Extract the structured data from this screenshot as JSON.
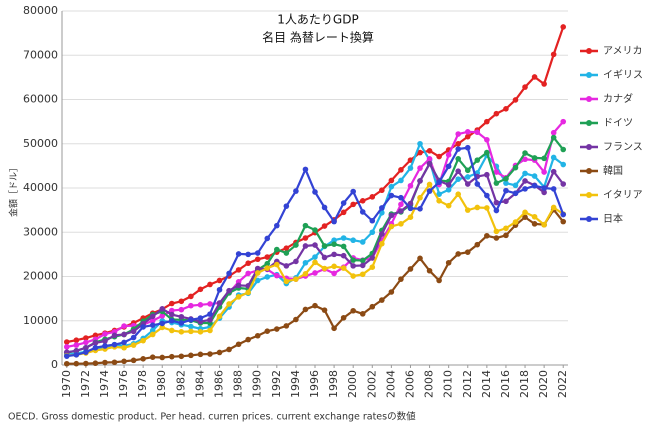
{
  "chart_data": {
    "type": "line",
    "title": "1人あたりGDP",
    "subtitle": "名目 為替レート換算",
    "y_label": "金額［ドル］",
    "source": "OECD. Gross domestic product. Per head. curren prices. current exchange ratesの数値",
    "x": [
      1970,
      1971,
      1972,
      1973,
      1974,
      1975,
      1976,
      1977,
      1978,
      1979,
      1980,
      1981,
      1982,
      1983,
      1984,
      1985,
      1986,
      1987,
      1988,
      1989,
      1990,
      1991,
      1992,
      1993,
      1994,
      1995,
      1996,
      1997,
      1998,
      1999,
      2000,
      2001,
      2002,
      2003,
      2004,
      2005,
      2006,
      2007,
      2008,
      2009,
      2010,
      2011,
      2012,
      2013,
      2014,
      2015,
      2016,
      2017,
      2018,
      2019,
      2020,
      2021,
      2022
    ],
    "xlim": [
      1969.5,
      2022.5
    ],
    "xticks": [
      1970,
      1972,
      1974,
      1976,
      1978,
      1980,
      1982,
      1984,
      1986,
      1988,
      1990,
      1992,
      1994,
      1996,
      1998,
      2000,
      2002,
      2004,
      2006,
      2008,
      2010,
      2012,
      2014,
      2016,
      2018,
      2020,
      2022
    ],
    "ylim": [
      0,
      80000
    ],
    "yticks": [
      0,
      10000,
      20000,
      30000,
      40000,
      50000,
      60000,
      70000,
      80000
    ],
    "grid": true,
    "legend": "right",
    "series": [
      {
        "name": "アメリカ",
        "color": "#e32222",
        "values": [
          5200,
          5600,
          6100,
          6700,
          7200,
          7800,
          8600,
          9500,
          10600,
          11700,
          12600,
          13900,
          14400,
          15500,
          17100,
          18200,
          19100,
          20100,
          21500,
          23000,
          23900,
          24400,
          25500,
          26400,
          27700,
          28700,
          29900,
          31400,
          32800,
          34500,
          36300,
          37100,
          38000,
          39500,
          41700,
          44100,
          46300,
          48000,
          48400,
          47100,
          48600,
          50000,
          51600,
          53100,
          55000,
          56800,
          57900,
          59900,
          62800,
          65100,
          63500,
          70200,
          76400
        ]
      },
      {
        "name": "イギリス",
        "color": "#22b4e6",
        "values": [
          2300,
          2600,
          3000,
          3500,
          3900,
          4600,
          4300,
          4800,
          6000,
          7800,
          10000,
          9600,
          9100,
          8700,
          8200,
          8600,
          10600,
          13100,
          15800,
          16200,
          19100,
          19900,
          20400,
          18400,
          19700,
          23100,
          24400,
          26800,
          28200,
          28700,
          28200,
          27800,
          30000,
          34400,
          40300,
          41700,
          44500,
          50000,
          46300,
          38600,
          39600,
          42000,
          42500,
          43400,
          47400,
          44900,
          41100,
          40600,
          43300,
          42700,
          40200,
          46900,
          45300
        ]
      },
      {
        "name": "カナダ",
        "color": "#e628e0",
        "values": [
          4100,
          4500,
          5100,
          5800,
          7000,
          7500,
          8800,
          8900,
          9100,
          10000,
          11100,
          12300,
          12500,
          13400,
          13600,
          13800,
          14000,
          16300,
          18800,
          20700,
          21400,
          21600,
          20200,
          19600,
          19400,
          20100,
          20800,
          21700,
          20700,
          22100,
          24200,
          23700,
          24200,
          28200,
          31900,
          36300,
          40500,
          44500,
          46600,
          40800,
          47500,
          52200,
          52700,
          52600,
          50900,
          43600,
          42300,
          45100,
          46500,
          46300,
          43600,
          52500,
          55000
        ]
      },
      {
        "name": "ドイツ",
        "color": "#1fa055",
        "values": [
          2800,
          3200,
          3900,
          5100,
          5800,
          6400,
          6900,
          8100,
          9900,
          11400,
          12100,
          10300,
          10200,
          10100,
          9500,
          9500,
          13100,
          16300,
          17400,
          17200,
          21500,
          22900,
          26100,
          25300,
          27100,
          31500,
          30500,
          26900,
          27300,
          26800,
          23700,
          23600,
          25200,
          30400,
          34100,
          34600,
          36200,
          41600,
          45500,
          41700,
          41500,
          46600,
          44000,
          46300,
          48000,
          41100,
          42100,
          44600,
          47900,
          46800,
          46700,
          51400,
          48700
        ]
      },
      {
        "name": "フランス",
        "color": "#7434a4",
        "values": [
          2900,
          3200,
          3900,
          5000,
          5400,
          6700,
          6900,
          7600,
          9300,
          11000,
          12700,
          11400,
          10900,
          10400,
          9800,
          10200,
          14000,
          16800,
          18000,
          17900,
          21800,
          21700,
          23400,
          22400,
          23400,
          26900,
          27100,
          24300,
          25000,
          24700,
          22400,
          22500,
          24200,
          29600,
          33800,
          34800,
          36500,
          41600,
          45500,
          41600,
          40700,
          43800,
          40900,
          42600,
          43000,
          36700,
          37000,
          38800,
          41600,
          40600,
          39000,
          43700,
          40900
        ]
      },
      {
        "name": "韓国",
        "color": "#8b4a14",
        "values": [
          280,
          300,
          330,
          400,
          560,
          620,
          830,
          1050,
          1400,
          1770,
          1700,
          1880,
          1970,
          2180,
          2410,
          2480,
          2830,
          3510,
          4690,
          5740,
          6610,
          7640,
          8130,
          8840,
          10280,
          12560,
          13400,
          12400,
          8300,
          10670,
          12260,
          11560,
          13170,
          14670,
          16500,
          19400,
          21700,
          24100,
          21300,
          19100,
          23100,
          25100,
          25500,
          27200,
          29200,
          28700,
          29300,
          31600,
          33400,
          31900,
          31700,
          35100,
          32400
        ]
      },
      {
        "name": "イタリア",
        "color": "#f2c20c",
        "values": [
          2100,
          2300,
          2700,
          3300,
          3600,
          4100,
          3900,
          4500,
          5500,
          6900,
          8500,
          7800,
          7500,
          7600,
          7500,
          7800,
          11000,
          13800,
          15400,
          16400,
          20800,
          21900,
          22700,
          18900,
          19400,
          20600,
          23200,
          21800,
          22300,
          21900,
          20100,
          20500,
          22100,
          27400,
          31300,
          31900,
          33400,
          37800,
          40800,
          37100,
          36000,
          38600,
          35000,
          35600,
          35500,
          30200,
          30900,
          32300,
          34500,
          33500,
          31700,
          35600,
          34100
        ]
      },
      {
        "name": "日本",
        "color": "#3343d4",
        "values": [
          2000,
          2300,
          2900,
          3900,
          4300,
          4600,
          5100,
          6200,
          8600,
          9000,
          9400,
          10000,
          9500,
          10200,
          10600,
          11500,
          17000,
          20700,
          25100,
          25000,
          25300,
          28600,
          31500,
          35900,
          39300,
          44200,
          39100,
          35600,
          32400,
          36600,
          39200,
          34600,
          32600,
          35500,
          38300,
          37800,
          35400,
          35300,
          39300,
          41300,
          44900,
          48800,
          49100,
          40900,
          38300,
          34900,
          39400,
          38800,
          39800,
          40500,
          40000,
          39800,
          34000
        ]
      }
    ]
  }
}
